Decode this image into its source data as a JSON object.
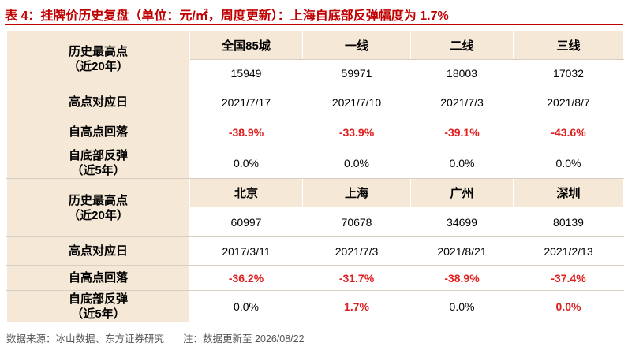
{
  "header": {
    "title": "表 4：挂牌价历史复盘（单位：元/㎡，周度更新）：上海自底部反弹幅度为 1.7%"
  },
  "table": {
    "blocks": [
      {
        "columns": [
          "全国85城",
          "一线",
          "二线",
          "三线"
        ],
        "rows": [
          {
            "label": [
              "历史最高点",
              "（近20年）"
            ],
            "values": [
              "15949",
              "59971",
              "18003",
              "17032"
            ]
          },
          {
            "label": [
              "高点对应日"
            ],
            "values": [
              "2021/7/17",
              "2021/7/10",
              "2021/7/3",
              "2021/8/7"
            ]
          },
          {
            "label": [
              "自高点回落"
            ],
            "values": [
              "-38.9%",
              "-33.9%",
              "-39.1%",
              "-43.6%"
            ]
          },
          {
            "label": [
              "自底部反弹",
              "（近5年）"
            ],
            "values": [
              "0.0%",
              "0.0%",
              "0.0%",
              "0.0%"
            ]
          }
        ]
      },
      {
        "columns": [
          "北京",
          "上海",
          "广州",
          "深圳"
        ],
        "rows": [
          {
            "label": [
              "历史最高点",
              "（近20年）"
            ],
            "values": [
              "60997",
              "70678",
              "34699",
              "80139"
            ]
          },
          {
            "label": [
              "高点对应日"
            ],
            "values": [
              "2017/3/11",
              "2021/7/3",
              "2021/8/21",
              "2021/2/13"
            ]
          },
          {
            "label": [
              "自高点回落"
            ],
            "values": [
              "-36.2%",
              "-31.7%",
              "-38.9%",
              "-37.4%"
            ]
          },
          {
            "label": [
              "自底部反弹",
              "（近5年）"
            ],
            "values": [
              "0.0%",
              "1.7%",
              "0.0%",
              "0.0%"
            ]
          }
        ]
      }
    ]
  },
  "footer": {
    "source": "数据来源：冰山数据、东方证券研究",
    "note": "注：数据更新至 2026/08/22"
  }
}
